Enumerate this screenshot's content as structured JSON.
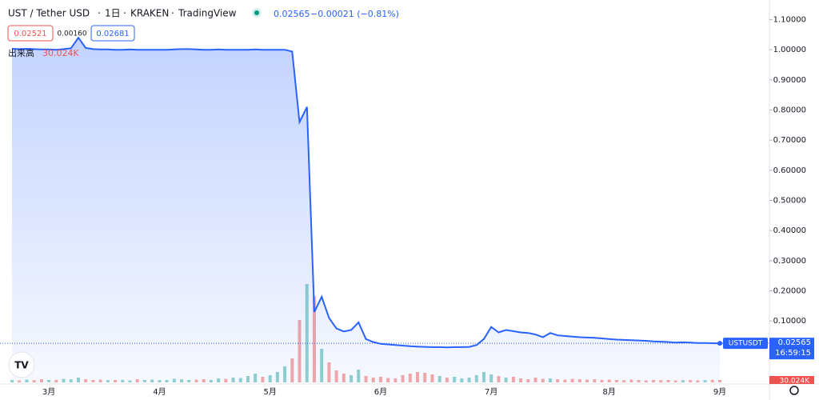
{
  "chart_data": {
    "type": "area",
    "title": "UST / Tether USD",
    "interval": "1日",
    "exchange": "KRAKEN",
    "source": "TradingView",
    "last": "0.02565",
    "change": "−0.00021 (−0.81%)",
    "bid": "0.02521",
    "spread": "0.00160",
    "ask": "0.02681",
    "symbol": "USTUSDT",
    "countdown": "16:59:15",
    "categories": [
      null,
      null,
      null,
      null,
      null,
      "3月",
      null,
      null,
      null,
      null,
      null,
      null,
      null,
      null,
      null,
      null,
      null,
      null,
      null,
      null,
      "4月",
      null,
      null,
      null,
      null,
      null,
      null,
      null,
      null,
      null,
      null,
      null,
      null,
      null,
      null,
      "5月",
      null,
      null,
      null,
      null,
      null,
      null,
      null,
      null,
      null,
      null,
      null,
      null,
      null,
      null,
      "6月",
      null,
      null,
      null,
      null,
      null,
      null,
      null,
      null,
      null,
      null,
      null,
      null,
      null,
      null,
      "7月",
      null,
      null,
      null,
      null,
      null,
      null,
      null,
      null,
      null,
      null,
      null,
      null,
      null,
      null,
      null,
      "8月",
      null,
      null,
      null,
      null,
      null,
      null,
      null,
      null,
      null,
      null,
      null,
      null,
      null,
      null,
      "9月"
    ],
    "series": [
      {
        "color": "#2962ff",
        "values": [
          1.003,
          1.002,
          1.003,
          1.002,
          1.001,
          1.001,
          1.0,
          1.002,
          1.005,
          1.04,
          1.006,
          1.002,
          1.001,
          1.001,
          1.0,
          1.0,
          1.001,
          1.0,
          1.0,
          1.0,
          1.0,
          1.0,
          1.001,
          1.002,
          1.002,
          1.001,
          1.0,
          1.0,
          1.001,
          1.0,
          1.0,
          1.0,
          1.0,
          1.001,
          1.0,
          1.0,
          1.0,
          1.0,
          0.994,
          0.76,
          0.81,
          0.13,
          0.18,
          0.11,
          0.075,
          0.065,
          0.07,
          0.095,
          0.04,
          0.03,
          0.024,
          0.022,
          0.02,
          0.018,
          0.016,
          0.015,
          0.014,
          0.013,
          0.013,
          0.012,
          0.013,
          0.013,
          0.014,
          0.02,
          0.04,
          0.08,
          0.062,
          0.07,
          0.066,
          0.062,
          0.06,
          0.055,
          0.046,
          0.06,
          0.052,
          0.05,
          0.048,
          0.046,
          0.045,
          0.044,
          0.042,
          0.04,
          0.038,
          0.037,
          0.036,
          0.035,
          0.034,
          0.032,
          0.031,
          0.03,
          0.028,
          0.029,
          0.028,
          0.027,
          0.027,
          0.026,
          0.02565
        ]
      }
    ],
    "volume": {
      "name": "出来高",
      "up_color": "#26a69a",
      "down_color": "#ef5350",
      "last_label": "30.024K",
      "values": [
        30000,
        25000,
        35000,
        28000,
        40000,
        30000,
        32000,
        45000,
        38000,
        60000,
        40000,
        30000,
        35000,
        28000,
        30000,
        32000,
        25000,
        40000,
        30000,
        35000,
        28000,
        30000,
        45000,
        38000,
        30000,
        35000,
        40000,
        30000,
        50000,
        45000,
        60000,
        55000,
        80000,
        110000,
        70000,
        90000,
        130000,
        200000,
        300000,
        780000,
        1230000,
        1080000,
        420000,
        250000,
        150000,
        110000,
        90000,
        160000,
        80000,
        60000,
        70000,
        55000,
        50000,
        90000,
        110000,
        130000,
        120000,
        100000,
        80000,
        60000,
        70000,
        50000,
        60000,
        90000,
        130000,
        100000,
        80000,
        60000,
        70000,
        50000,
        40000,
        60000,
        45000,
        50000,
        40000,
        35000,
        45000,
        40000,
        35000,
        40000,
        30000,
        35000,
        30000,
        28000,
        35000,
        30000,
        25000,
        30000,
        28000,
        30000,
        25000,
        28000,
        30000,
        25000,
        28000,
        32000,
        30024
      ],
      "ylim": [
        0,
        1500000
      ]
    },
    "ylim": [
      -0.104,
      1.165
    ],
    "yticks": [
      {
        "value": 0.1,
        "label": "0.10000"
      },
      {
        "value": 0.2,
        "label": "0.20000"
      },
      {
        "value": 0.3,
        "label": "0.30000"
      },
      {
        "value": 0.4,
        "label": "0.40000"
      },
      {
        "value": 0.5,
        "label": "0.50000"
      },
      {
        "value": 0.6,
        "label": "0.60000"
      },
      {
        "value": 0.7,
        "label": "0.70000"
      },
      {
        "value": 0.8,
        "label": "0.80000"
      },
      {
        "value": 0.9,
        "label": "0.90000"
      },
      {
        "value": 1.0,
        "label": "1.00000"
      },
      {
        "value": 1.1,
        "label": "1.10000"
      }
    ],
    "grid": false
  }
}
